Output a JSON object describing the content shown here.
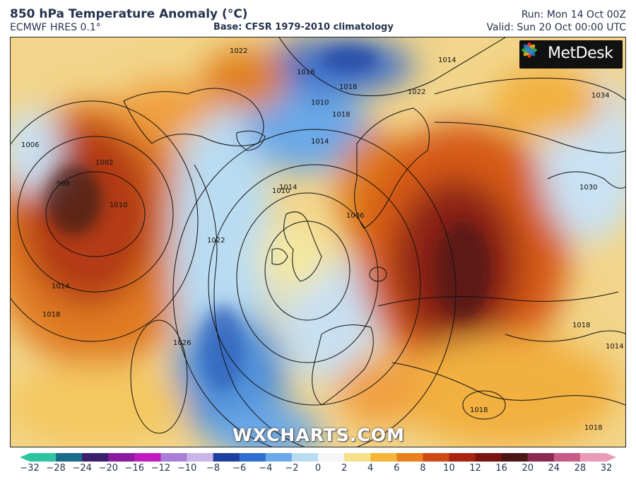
{
  "header": {
    "title": "850 hPa Temperature Anomaly (°C)",
    "model": "ECMWF HRES 0.1°",
    "base": "Base: CFSR 1979-2010 climatology",
    "run": "Run: Mon 14 Oct 00Z",
    "valid": "Valid: Sun 20 Oct 00:00 UTC"
  },
  "branding": {
    "badge": "MetDesk",
    "watermark": "WXCHARTS.COM"
  },
  "isobar_labels": [
    "1010",
    "1014",
    "1018",
    "1022",
    "1018",
    "1018",
    "1014",
    "1014",
    "1034",
    "1006",
    "998",
    "1002",
    "1010",
    "1010",
    "1006",
    "1030",
    "1022",
    "1014",
    "1018",
    "1026",
    "1018",
    "1018",
    "1014",
    "1018",
    "1022"
  ],
  "colorbar": {
    "ticks": [
      "−32",
      "−28",
      "−24",
      "−20",
      "−16",
      "−12",
      "−10",
      "−8",
      "−6",
      "−4",
      "−2",
      "0",
      "2",
      "4",
      "6",
      "8",
      "10",
      "12",
      "16",
      "20",
      "24",
      "28",
      "32"
    ],
    "colors": [
      "#2ec4a0",
      "#1a6b8a",
      "#3a1f6e",
      "#8a1aa0",
      "#c01bc0",
      "#a87fd8",
      "#c9b6e8",
      "#1f3f9f",
      "#2f6fd0",
      "#6aa8e8",
      "#b9dcf2",
      "#f4f6f8",
      "#f6e08a",
      "#f3b63a",
      "#e8801c",
      "#cf4a12",
      "#a82410",
      "#7a1410",
      "#4a1616",
      "#8a2a50",
      "#c85a86",
      "#e89ab8"
    ]
  }
}
